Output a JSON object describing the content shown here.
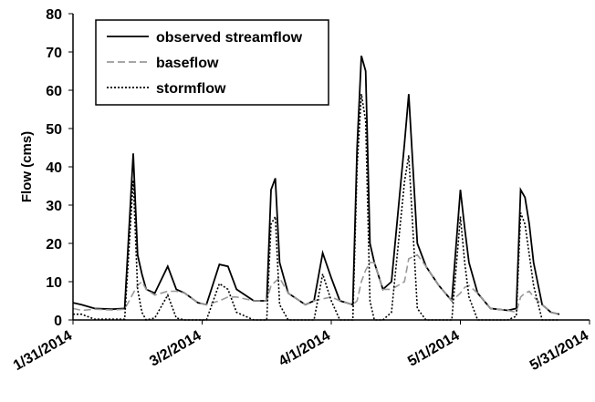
{
  "chart_data": {
    "type": "line",
    "y_label": "Flow (cms)",
    "x": [
      "1/31/2014",
      "2/2/2014",
      "2/5/2014",
      "2/9/2014",
      "2/12/2014",
      "2/14/2014",
      "2/15/2014",
      "2/16/2014",
      "2/17/2014",
      "2/19/2014",
      "2/22/2014",
      "2/24/2014",
      "2/26/2014",
      "3/1/2014",
      "3/3/2014",
      "3/6/2014",
      "3/8/2014",
      "3/10/2014",
      "3/14/2014",
      "3/17/2014",
      "3/18/2014",
      "3/19/2014",
      "3/20/2014",
      "3/22/2014",
      "3/26/2014",
      "3/28/2014",
      "3/30/2014",
      "4/1/2014",
      "4/3/2014",
      "4/6/2014",
      "4/7/2014",
      "4/8/2014",
      "4/9/2014",
      "4/10/2014",
      "4/11/2014",
      "4/13/2014",
      "4/15/2014",
      "4/18/2014",
      "4/19/2014",
      "4/21/2014",
      "4/23/2014",
      "4/26/2014",
      "4/29/2014",
      "5/1/2014",
      "5/2/2014",
      "5/3/2014",
      "5/5/2014",
      "5/8/2014",
      "5/12/2014",
      "5/14/2014",
      "5/15/2014",
      "5/16/2014",
      "5/17/2014",
      "5/18/2014",
      "5/20/2014",
      "5/22/2014",
      "5/24/2014"
    ],
    "series": [
      {
        "name": "observed streamflow",
        "color": "#000000",
        "dash": "solid",
        "values": [
          4.5,
          4,
          3,
          2.8,
          3,
          43.5,
          17,
          12,
          8,
          7,
          14,
          8,
          7,
          4.5,
          4,
          14.5,
          14,
          8,
          5,
          5,
          34,
          37,
          15,
          7,
          4,
          5,
          17.5,
          11,
          5,
          4,
          45,
          69,
          65,
          20,
          15,
          8,
          10,
          46,
          59,
          20,
          14,
          9,
          5,
          34,
          24,
          15,
          7,
          3,
          2.5,
          3,
          34,
          32,
          25,
          15,
          4,
          2,
          1.5
        ]
      },
      {
        "name": "baseflow",
        "color": "#999999",
        "dash": "dashed",
        "values": [
          3,
          2.5,
          2.8,
          2.6,
          2.8,
          7,
          9,
          10,
          8,
          6.5,
          7.5,
          7.5,
          7,
          4.5,
          4,
          5,
          6,
          6,
          5,
          5,
          9,
          10,
          11,
          7,
          4,
          5,
          5.5,
          6,
          5,
          4,
          5,
          10,
          13,
          15,
          15,
          8,
          8,
          10,
          16,
          17,
          14,
          9,
          5,
          7,
          8.5,
          9,
          7,
          3,
          2.5,
          2,
          6,
          7,
          7.5,
          6,
          4,
          2,
          1.5
        ]
      },
      {
        "name": "stormflow",
        "color": "#000000",
        "dash": "dotted",
        "values": [
          1.5,
          1.5,
          0.2,
          0.2,
          0.2,
          36.5,
          8,
          2,
          0,
          0.5,
          6.5,
          0.5,
          0,
          0,
          0,
          9.5,
          8,
          2,
          0,
          0,
          25,
          27,
          4,
          0,
          0,
          0,
          12,
          5,
          0,
          0,
          40,
          59,
          52,
          5,
          0,
          0,
          2,
          36,
          43,
          3,
          0,
          0,
          0,
          27,
          15,
          6,
          0,
          0,
          0,
          1,
          28,
          25,
          17,
          9,
          0,
          0,
          0
        ]
      }
    ],
    "xlim": [
      "1/31/2014",
      "5/31/2014"
    ],
    "xticks": [
      "1/31/2014",
      "3/2/2014",
      "4/1/2014",
      "5/1/2014",
      "5/31/2014"
    ],
    "ylim": [
      0,
      80
    ],
    "yticks": [
      0,
      10,
      20,
      30,
      40,
      50,
      60,
      70,
      80
    ],
    "grid": false,
    "legend": "upper left"
  }
}
